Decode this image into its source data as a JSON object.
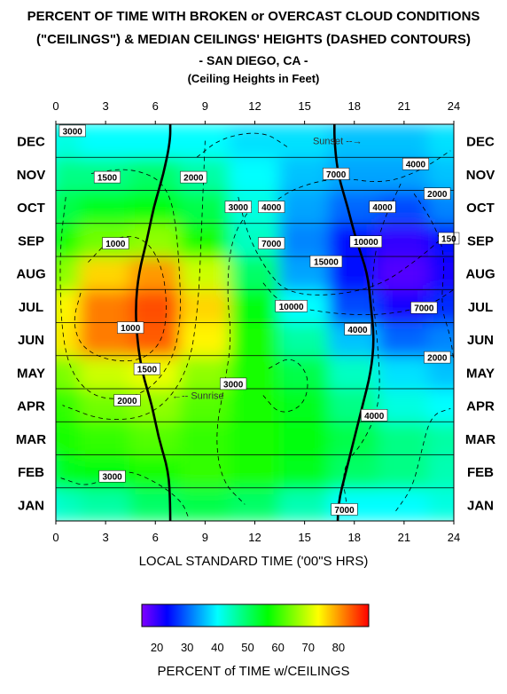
{
  "title_lines": [
    "PERCENT OF TIME WITH BROKEN or OVERCAST CLOUD CONDITIONS",
    "(\"CEILINGS\")  & MEDIAN CEILINGS' HEIGHTS (DASHED CONTOURS)",
    "- SAN DIEGO, CA -",
    "(Ceiling Heights in Feet)"
  ],
  "chart_data": {
    "type": "heatmap",
    "xlabel": "LOCAL STANDARD TIME ('00\"S HRS)",
    "xlim": [
      0,
      24
    ],
    "x_ticks": [
      0,
      3,
      6,
      9,
      12,
      15,
      18,
      21,
      24
    ],
    "months": [
      "JAN",
      "FEB",
      "MAR",
      "APR",
      "MAY",
      "JUN",
      "JUL",
      "AUG",
      "SEP",
      "OCT",
      "NOV",
      "DEC"
    ],
    "colorbar": {
      "label": "PERCENT of TIME w/CEILINGS",
      "ticks": [
        20,
        30,
        40,
        50,
        60,
        70,
        80
      ],
      "range": [
        15,
        90
      ],
      "colors": [
        "#8000ff",
        "#0000ff",
        "#0080ff",
        "#00ffff",
        "#00ff80",
        "#00ff00",
        "#80ff00",
        "#ffff00",
        "#ff8000",
        "#ff0000"
      ]
    },
    "grid_hours": [
      0,
      3,
      6,
      9,
      12,
      15,
      18,
      21,
      24
    ],
    "percent_grid": [
      [
        44,
        46,
        50,
        52,
        50,
        45,
        40,
        40,
        42,
        40,
        40,
        38,
        40
      ],
      [
        55,
        56,
        58,
        60,
        58,
        55,
        50,
        48,
        45,
        45,
        46,
        45,
        48
      ],
      [
        58,
        60,
        62,
        60,
        58,
        56,
        52,
        48,
        46,
        48,
        50,
        52,
        55
      ],
      [
        60,
        64,
        66,
        62,
        58,
        55,
        48,
        42,
        40,
        44,
        50,
        55,
        58
      ],
      [
        65,
        70,
        72,
        66,
        58,
        52,
        44,
        38,
        36,
        42,
        50,
        58,
        62
      ],
      [
        75,
        82,
        84,
        74,
        58,
        46,
        36,
        30,
        32,
        42,
        52,
        62,
        70
      ],
      [
        74,
        82,
        85,
        76,
        56,
        40,
        28,
        22,
        26,
        40,
        52,
        62,
        66
      ],
      [
        66,
        76,
        80,
        70,
        50,
        34,
        24,
        18,
        22,
        36,
        48,
        56,
        58
      ],
      [
        58,
        64,
        66,
        58,
        44,
        32,
        24,
        20,
        24,
        36,
        46,
        52,
        52
      ],
      [
        52,
        55,
        56,
        52,
        42,
        34,
        30,
        28,
        32,
        40,
        44,
        48,
        48
      ],
      [
        48,
        48,
        50,
        46,
        40,
        36,
        34,
        34,
        36,
        40,
        42,
        42,
        42
      ],
      [
        42,
        40,
        40,
        40,
        38,
        38,
        36,
        36,
        38,
        40,
        40,
        40,
        40
      ]
    ],
    "sunrise_curve": {
      "label": "Sunrise",
      "hours": [
        6.9,
        6.8,
        6.2,
        5.8,
        5.2,
        4.9,
        4.8,
        5.0,
        5.5,
        5.9,
        6.5,
        6.9
      ],
      "label_month": 3.8,
      "label_hour": 7.0
    },
    "sunset_curve": {
      "label": "Sunset",
      "hours": [
        17.0,
        17.5,
        18.0,
        18.5,
        19.0,
        19.2,
        19.0,
        18.8,
        18.1,
        17.6,
        17.0,
        16.8
      ],
      "label_month": 11.5,
      "label_hour": 15.5
    },
    "contour_labels": [
      {
        "text": "3000",
        "hour": 1.0,
        "month": 11.8
      },
      {
        "text": "4000",
        "hour": 21.7,
        "month": 10.8
      },
      {
        "text": "1500",
        "hour": 3.1,
        "month": 10.4
      },
      {
        "text": "2000",
        "hour": 8.3,
        "month": 10.4
      },
      {
        "text": "7000",
        "hour": 16.9,
        "month": 10.5
      },
      {
        "text": "2000",
        "hour": 23.0,
        "month": 9.9
      },
      {
        "text": "3000",
        "hour": 11.0,
        "month": 9.5
      },
      {
        "text": "4000",
        "hour": 13.0,
        "month": 9.5
      },
      {
        "text": "4000",
        "hour": 19.7,
        "month": 9.5
      },
      {
        "text": "1000",
        "hour": 3.6,
        "month": 8.4
      },
      {
        "text": "7000",
        "hour": 13.0,
        "month": 8.4
      },
      {
        "text": "10000",
        "hour": 18.7,
        "month": 8.45
      },
      {
        "text": "150",
        "hour": 23.7,
        "month": 8.55
      },
      {
        "text": "15000",
        "hour": 16.3,
        "month": 7.85
      },
      {
        "text": "10000",
        "hour": 14.2,
        "month": 6.5
      },
      {
        "text": "7000",
        "hour": 22.2,
        "month": 6.45
      },
      {
        "text": "1000",
        "hour": 4.5,
        "month": 5.85
      },
      {
        "text": "4000",
        "hour": 18.2,
        "month": 5.8
      },
      {
        "text": "2000",
        "hour": 23.0,
        "month": 4.95
      },
      {
        "text": "1500",
        "hour": 5.5,
        "month": 4.6
      },
      {
        "text": "3000",
        "hour": 10.7,
        "month": 4.15
      },
      {
        "text": "2000",
        "hour": 4.3,
        "month": 3.65
      },
      {
        "text": "4000",
        "hour": 19.2,
        "month": 3.2
      },
      {
        "text": "3000",
        "hour": 3.4,
        "month": 1.35
      },
      {
        "text": "7000",
        "hour": 17.4,
        "month": 0.35
      }
    ]
  }
}
